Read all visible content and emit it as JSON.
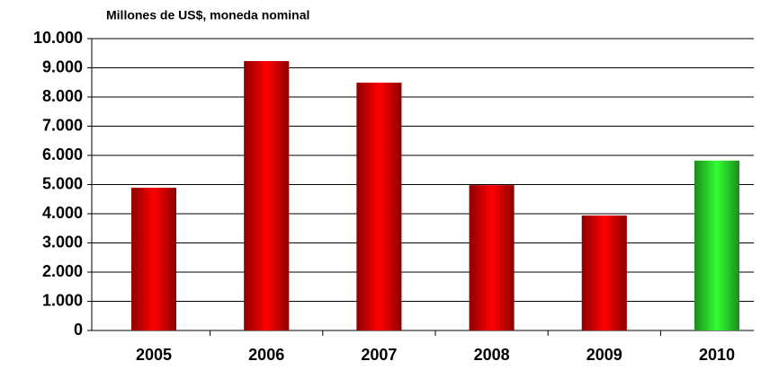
{
  "chart_data": {
    "type": "bar",
    "title": "Millones de US$, moneda nominal",
    "categories": [
      "2005",
      "2006",
      "2007",
      "2008",
      "2009",
      "2010"
    ],
    "values": [
      4890,
      9230,
      8490,
      4980,
      3940,
      5820
    ],
    "colors": [
      "#ff0000",
      "#ff0000",
      "#ff0000",
      "#ff0000",
      "#ff0000",
      "#33ff33"
    ],
    "ylim": [
      0,
      10000
    ],
    "yticks": [
      {
        "value": 0,
        "label": "0"
      },
      {
        "value": 1000,
        "label": "1.000"
      },
      {
        "value": 2000,
        "label": "2.000"
      },
      {
        "value": 3000,
        "label": "3.000"
      },
      {
        "value": 4000,
        "label": "4.000"
      },
      {
        "value": 5000,
        "label": "5.000"
      },
      {
        "value": 6000,
        "label": "6.000"
      },
      {
        "value": 7000,
        "label": "7.000"
      },
      {
        "value": 8000,
        "label": "8.000"
      },
      {
        "value": 9000,
        "label": "9.000"
      },
      {
        "value": 10000,
        "label": "10.000"
      }
    ],
    "grid": true
  }
}
